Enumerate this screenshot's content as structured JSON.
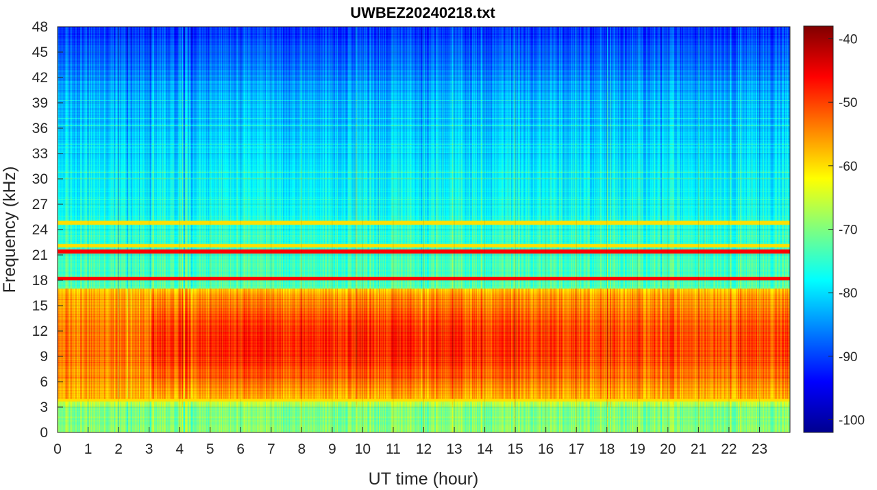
{
  "chart_data": {
    "type": "heatmap",
    "title": "UWBEZ20240218.txt",
    "xlabel": "UT time (hour)",
    "ylabel": "Frequency (kHz)",
    "xlim": [
      0,
      24
    ],
    "ylim": [
      0,
      48
    ],
    "x_ticks": [
      0,
      1,
      2,
      3,
      4,
      5,
      6,
      7,
      8,
      9,
      10,
      11,
      12,
      13,
      14,
      15,
      16,
      17,
      18,
      19,
      20,
      21,
      22,
      23
    ],
    "y_ticks": [
      0,
      3,
      6,
      9,
      12,
      15,
      18,
      21,
      24,
      27,
      30,
      33,
      36,
      39,
      42,
      45,
      48
    ],
    "colormap": "jet",
    "colorbar": {
      "range": [
        -102,
        -38
      ],
      "ticks": [
        -100,
        -90,
        -80,
        -70,
        -60,
        -50,
        -40
      ]
    },
    "grid": true,
    "features": {
      "persistent_lines_khz": [
        18.2,
        21.4,
        24.8,
        22.1,
        3.9
      ],
      "strong_band_khz": [
        4,
        17
      ],
      "strong_band_level_db": -50
    }
  }
}
